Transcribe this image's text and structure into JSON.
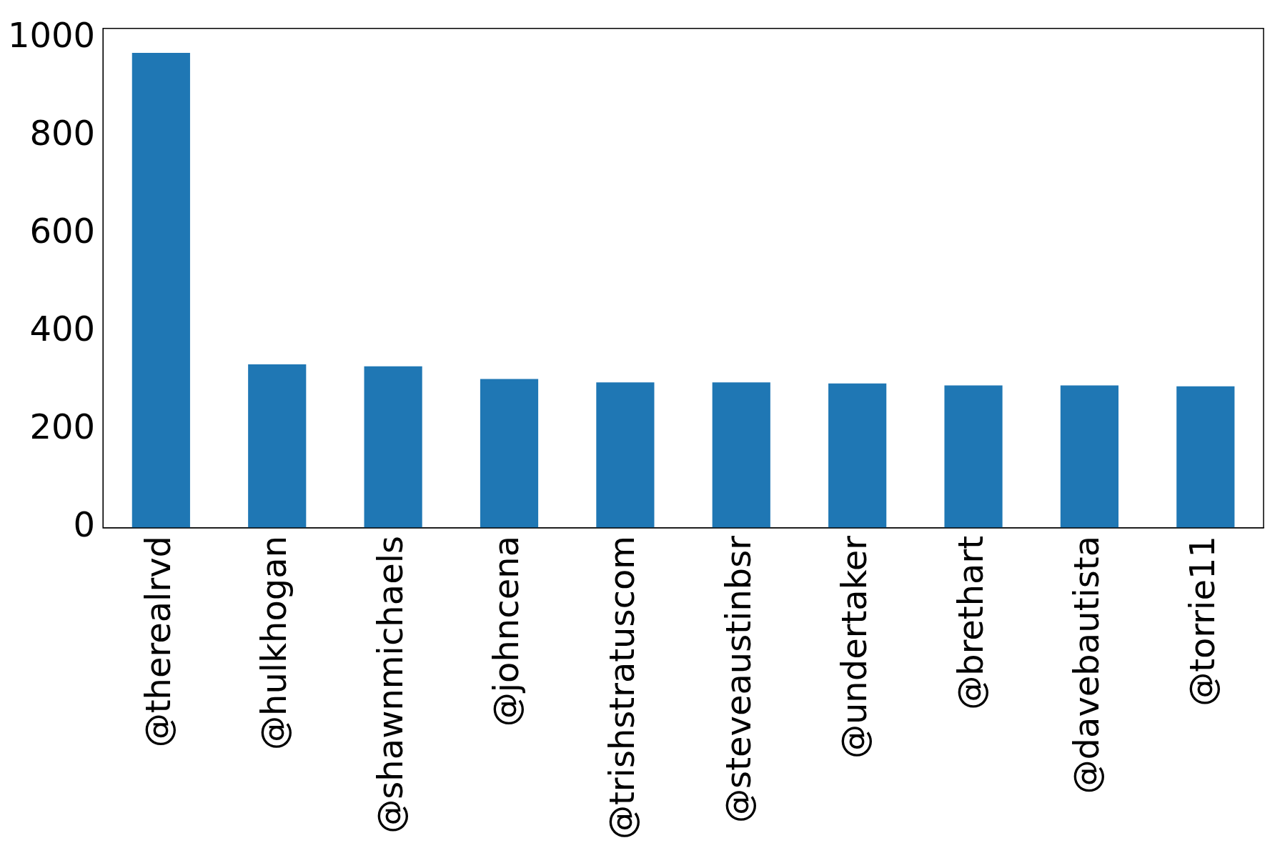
{
  "chart_data": {
    "type": "bar",
    "categories": [
      "@therealrvd",
      "@hulkhogan",
      "@shawnmichaels",
      "@johncena",
      "@trishstratuscom",
      "@steveaustinbsr",
      "@undertaker",
      "@brethart",
      "@davebautista",
      "@torrie11"
    ],
    "values": [
      970,
      334,
      330,
      304,
      297,
      297,
      295,
      291,
      291,
      289
    ],
    "color": "#1f77b4",
    "ylim": [
      0,
      1020
    ],
    "yticks": [
      0,
      200,
      400,
      600,
      800,
      1000
    ],
    "grid": false,
    "legend": false
  }
}
